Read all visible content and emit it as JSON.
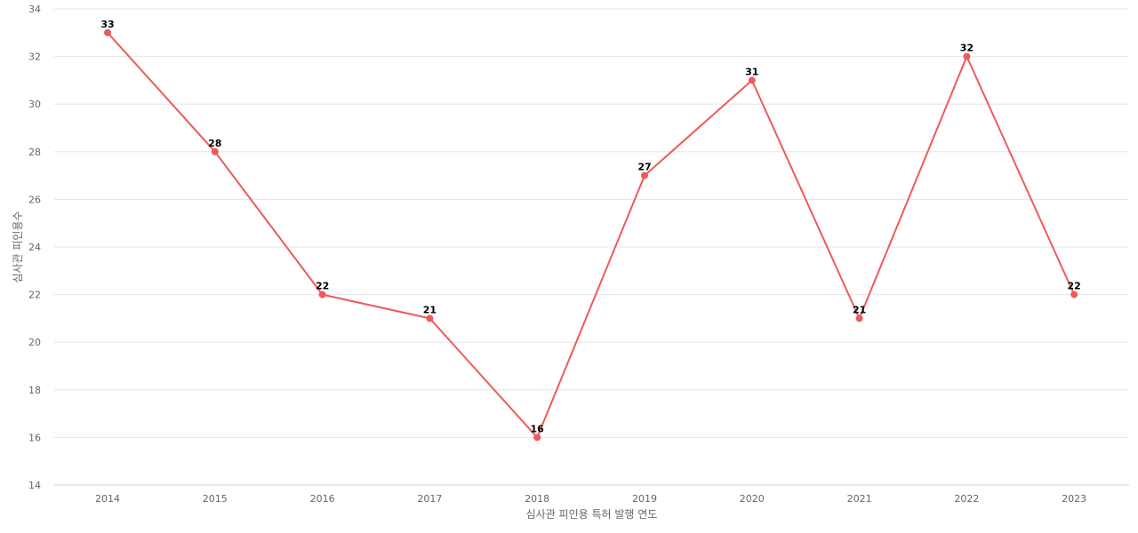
{
  "chart_data": {
    "type": "line",
    "title": "",
    "xlabel": "심사관 피인용 특허 발행 연도",
    "ylabel": "심사관 피인용수",
    "x": [
      "2014",
      "2015",
      "2016",
      "2017",
      "2018",
      "2019",
      "2020",
      "2021",
      "2022",
      "2023"
    ],
    "series": [
      {
        "values": [
          33,
          28,
          22,
          21,
          16,
          27,
          31,
          21,
          32,
          22
        ],
        "color": "#ee5a5a"
      }
    ],
    "ylim": [
      14,
      34
    ],
    "yticks": [
      14,
      16,
      18,
      20,
      22,
      24,
      26,
      28,
      30,
      32,
      34
    ],
    "grid": true,
    "data_labels": true
  }
}
